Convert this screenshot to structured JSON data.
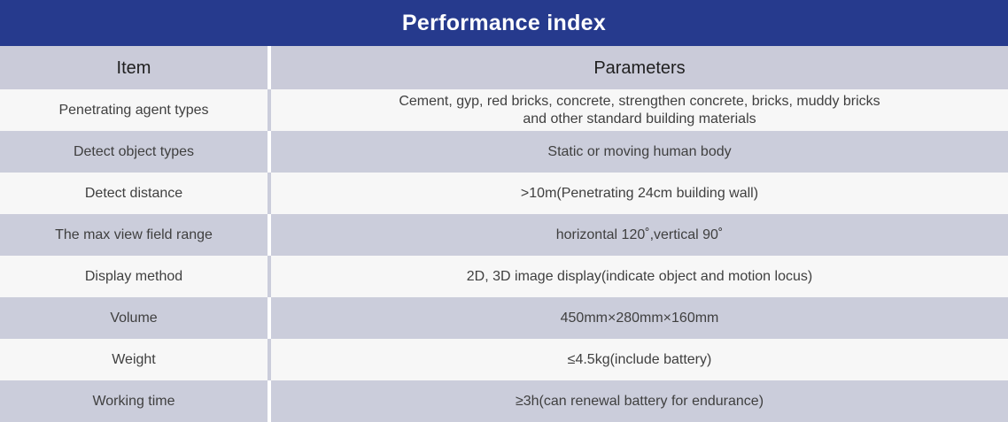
{
  "title": "Performance index",
  "headers": {
    "item": "Item",
    "parameters": "Parameters"
  },
  "rows": [
    {
      "item": "Penetrating agent types",
      "value_line1": "Cement, gyp, red bricks, concrete, strengthen concrete, bricks, muddy bricks",
      "value_line2": "and other standard building materials"
    },
    {
      "item": "Detect object types",
      "value_line1": "Static or moving human body",
      "value_line2": ""
    },
    {
      "item": "Detect distance",
      "value_line1": ">10m(Penetrating 24cm building wall)",
      "value_line2": ""
    },
    {
      "item": "The max view field range",
      "value_line1": "horizontal 120˚,vertical 90˚",
      "value_line2": ""
    },
    {
      "item": "Display method",
      "value_line1": "2D, 3D image display(indicate object and motion locus)",
      "value_line2": ""
    },
    {
      "item": "Volume",
      "value_line1": "450mm×280mm×160mm",
      "value_line2": ""
    },
    {
      "item": "Weight",
      "value_line1": "≤4.5kg(include battery)",
      "value_line2": ""
    },
    {
      "item": "Working time",
      "value_line1": "≥3h(can renewal battery for endurance)",
      "value_line2": ""
    }
  ]
}
